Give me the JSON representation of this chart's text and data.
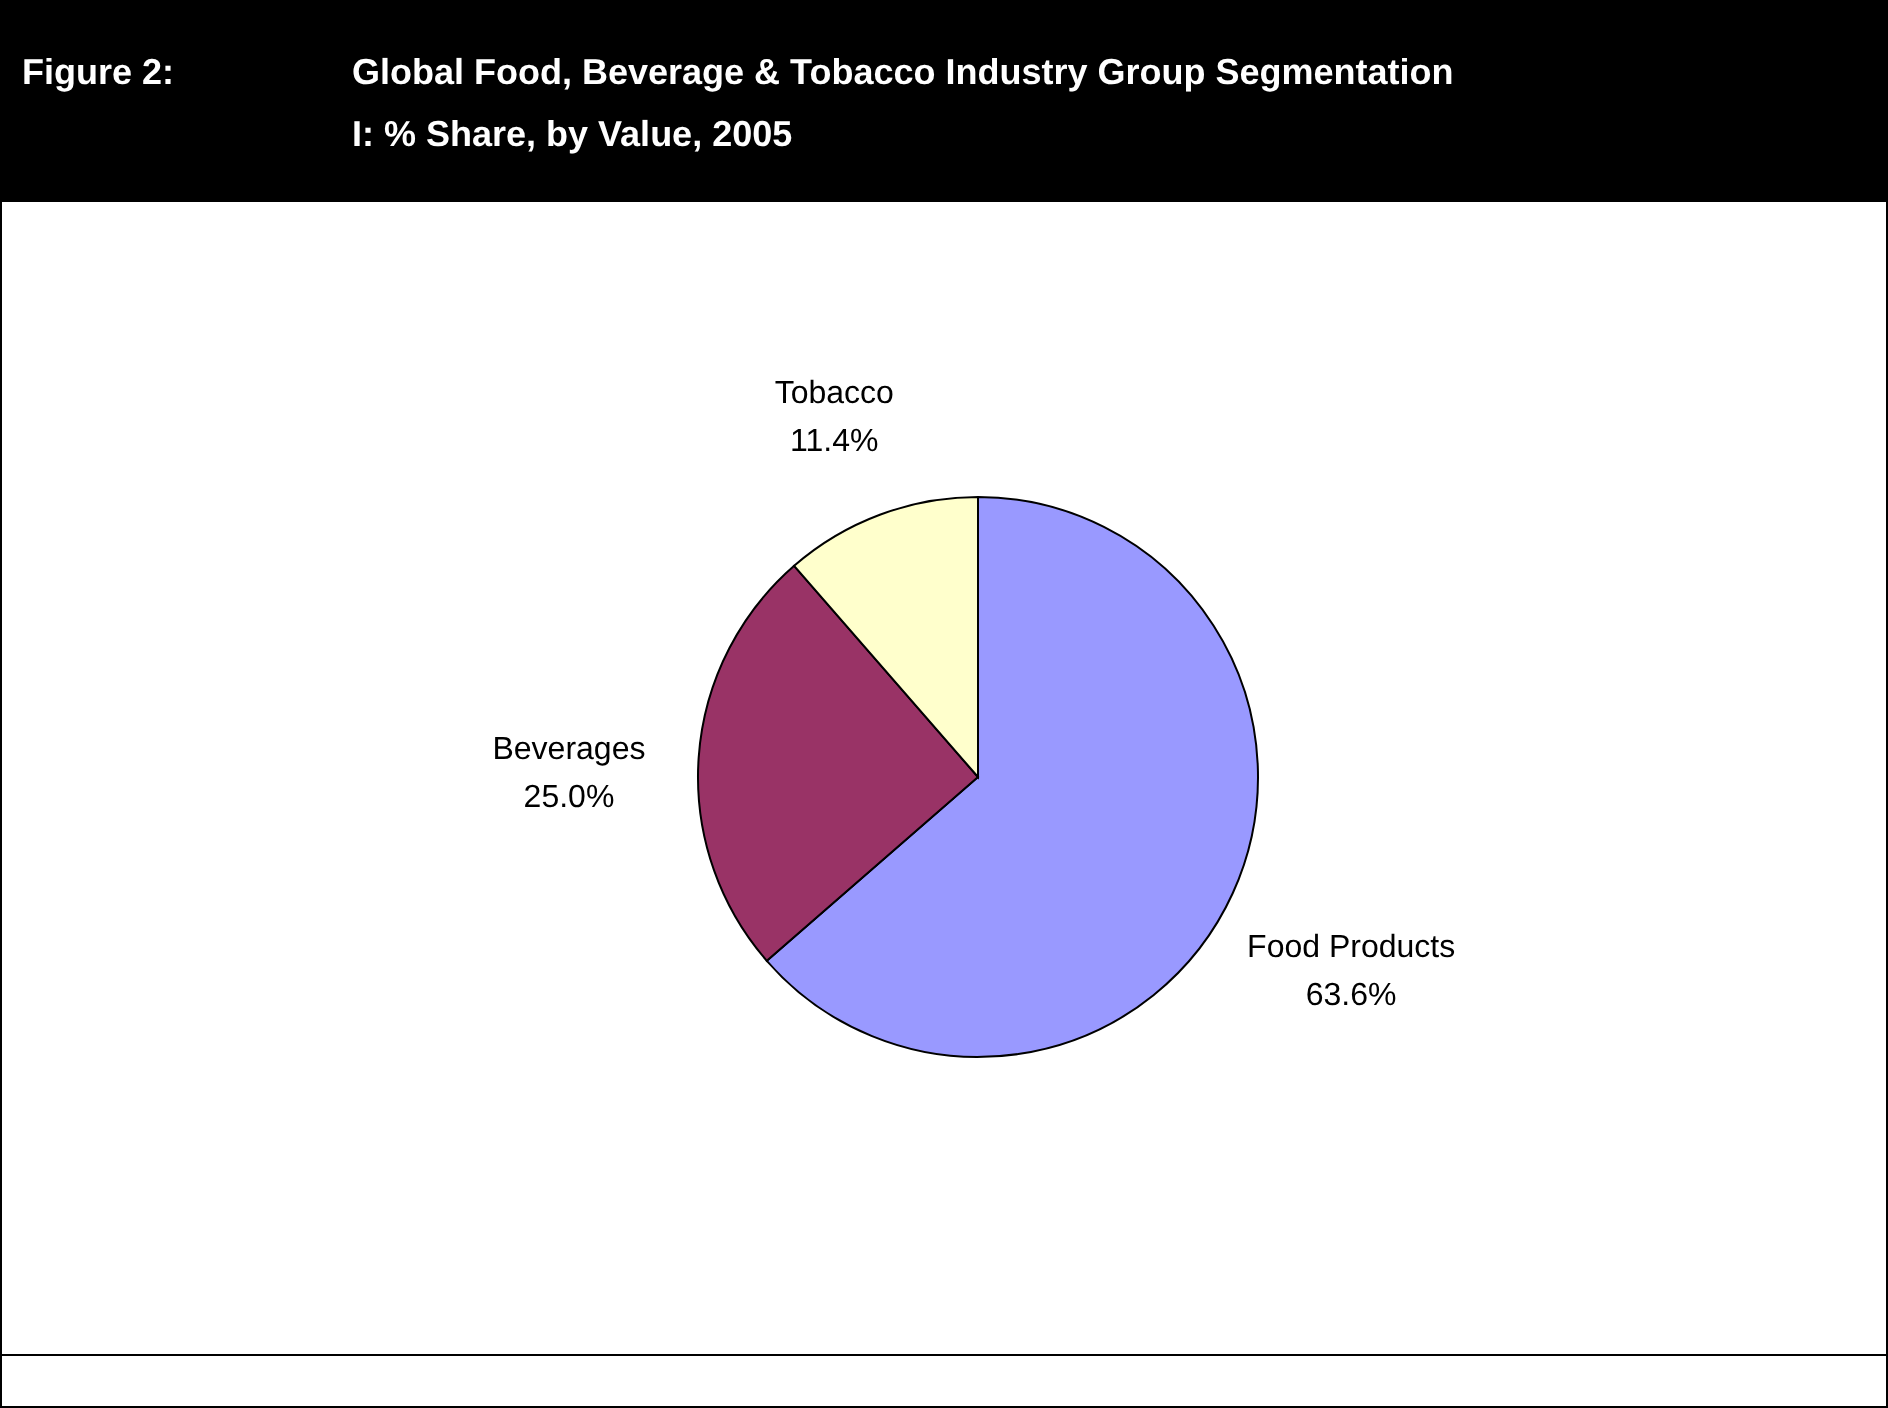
{
  "chart_data": {
    "type": "pie",
    "title": "Figure 2:",
    "subtitle": "Global Food, Beverage & Tobacco Industry Group Segmentation I: % Share, by Value, 2005",
    "categories": [
      "Food Products",
      "Beverages",
      "Tobacco"
    ],
    "values": [
      63.6,
      25.0,
      11.4
    ],
    "colors": [
      "#9999ff",
      "#993366",
      "#ffffcc"
    ],
    "value_labels": [
      "63.6%",
      "25.0%",
      "11.4%"
    ]
  }
}
